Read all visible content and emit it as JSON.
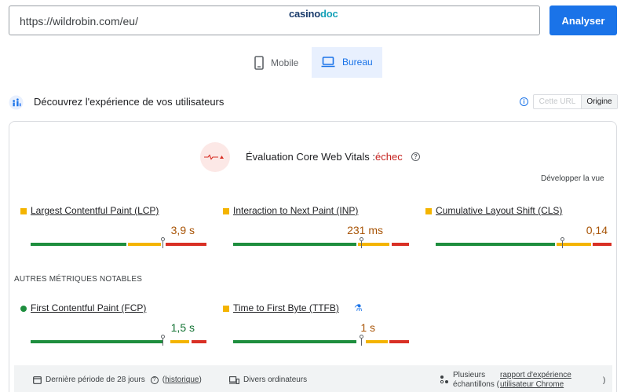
{
  "search": {
    "url_value": "https://wildrobin.com/eu/",
    "brand_part1": "casino",
    "brand_part2": "doc",
    "analyze_label": "Analyser"
  },
  "device_tabs": {
    "mobile": "Mobile",
    "desktop": "Bureau",
    "selected": "Bureau"
  },
  "section": {
    "title": "Découvrez l'expérience de vos utilisateurs",
    "toggle_url": "Cette URL",
    "toggle_origin": "Origine",
    "selected_toggle": "Origine"
  },
  "assessment": {
    "title": "Évaluation Core Web Vitals :",
    "status": "échec",
    "expand_label": "Développer la vue"
  },
  "core_metrics": [
    {
      "name": "Largest Contentful Paint (LCP)",
      "value": "3,9 s",
      "status": "average",
      "marker_fraction": 0.75
    },
    {
      "name": "Interaction to Next Paint (INP)",
      "value": "231 ms",
      "status": "average",
      "marker_fraction": 0.73
    },
    {
      "name": "Cumulative Layout Shift (CLS)",
      "value": "0,14",
      "status": "average",
      "marker_fraction": 0.72
    }
  ],
  "other_metrics_label": "AUTRES MÉTRIQUES NOTABLES",
  "other_metrics": [
    {
      "name": "First Contentful Paint (FCP)",
      "value": "1,5 s",
      "status": "good",
      "marker_fraction": 0.75
    },
    {
      "name": "Time to First Byte (TTFB)",
      "value": "1 s",
      "status": "average",
      "marker_fraction": 0.73
    }
  ],
  "footer": {
    "period": "Dernière période de 28 jours",
    "history_link": "historique",
    "devices": "Divers ordinateurs",
    "samples_line1": "Plusieurs",
    "samples_line2": "échantillons (",
    "report_link": "rapport d'expérience utilisateur Chrome",
    "close_paren": ")"
  },
  "colors": {
    "accent": "#1a73e8",
    "good": "#1e8e3e",
    "average": "#f4b400",
    "poor": "#d93025"
  }
}
